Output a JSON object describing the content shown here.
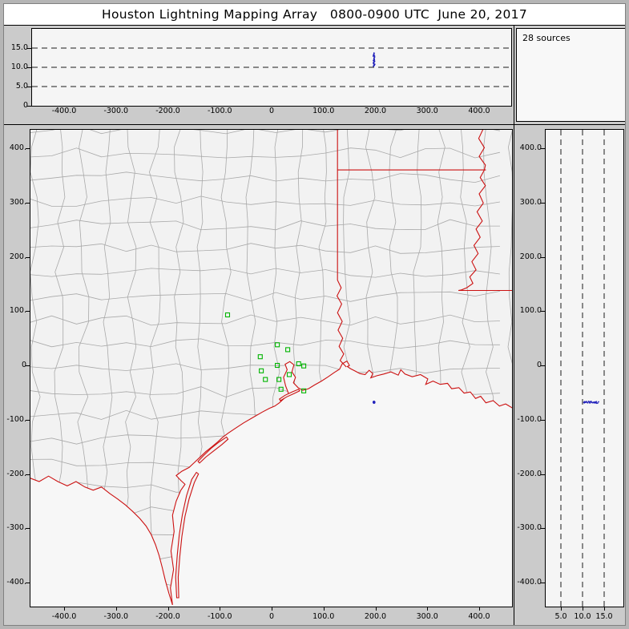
{
  "window": {
    "title": "Houston Lightning Mapping Array   0800-0900 UTC  June 20, 2017"
  },
  "source_panel": {
    "label": "28 sources"
  },
  "colors": {
    "state_border_red": "#cc1111",
    "county_line_gray": "#a9a9a9",
    "station_green": "#00b400",
    "source_blue": "#2222bb",
    "window_gray": "#cbcbcb",
    "frame_gray": "#b5b5b5",
    "panel_bg": "#f5f5f5",
    "sea_bg": "#f7f7f7",
    "land_fill": "#f2f2f2",
    "title_bg": "#ffffff"
  },
  "axes": {
    "ew_values_km": [
      -400,
      -300,
      -200,
      -100,
      0,
      100,
      200,
      300,
      400
    ],
    "ew_labels": [
      "-400.0",
      "-300.0",
      "-200.0",
      "-100.0",
      "0",
      "100.0",
      "200.0",
      "300.0",
      "400.0"
    ],
    "ns_values_km": [
      400,
      300,
      200,
      100,
      0,
      -100,
      -200,
      -300,
      -400
    ],
    "ns_labels_main": [
      "400.",
      "300.",
      "200.",
      "100.",
      "0",
      "-100.",
      "-200.",
      "-300.",
      "-400."
    ],
    "ns_labels_right": [
      "400.0",
      "300.0",
      "200.0",
      "100.0",
      "0",
      "-100.0",
      "-200.0",
      "-300.0",
      "-400.0"
    ],
    "alt_values_km": [
      15,
      10,
      5,
      0
    ],
    "alt_labels": [
      "15.0",
      "10.0",
      "5.0",
      "0"
    ],
    "alt_grid_km": [
      5,
      10,
      15
    ],
    "alt_right_values_km": [
      5,
      10,
      15
    ],
    "alt_right_labels": [
      "5.0",
      "10.0",
      "15.0"
    ]
  },
  "chart_data": {
    "type": "scatter",
    "title": "Houston Lightning Mapping Array 0800-0900 UTC June 20, 2017",
    "description": "XLMA-style lightning mapping array display: plan-view map of the Texas/Louisiana Gulf coast with altitude projection panels and source-count panel",
    "source_count": 28,
    "panels": [
      {
        "name": "altitude-vs-east-west",
        "x": "east-west distance (km)",
        "y": "altitude (km)",
        "x_range": [
          -462,
          462
        ],
        "y_range": [
          0,
          20
        ],
        "dashed_gridlines_km": [
          5,
          10,
          15
        ]
      },
      {
        "name": "source-count-histogram",
        "label": "28 sources"
      },
      {
        "name": "plan-view",
        "x": "east-west distance (km)",
        "y": "north-south distance (km)",
        "x_range": [
          -465,
          462
        ],
        "y_range": [
          -440,
          435
        ]
      },
      {
        "name": "altitude-vs-north-south",
        "x": "altitude (km)",
        "y": "north-south distance (km)",
        "x_range": [
          0,
          18
        ],
        "dashed_gridlines_km": [
          5,
          10,
          15
        ]
      }
    ],
    "station_marker": "green-open-square",
    "stations_km": [
      [
        -85,
        93
      ],
      [
        11,
        38
      ],
      [
        31,
        29
      ],
      [
        -22,
        16
      ],
      [
        52,
        3
      ],
      [
        62,
        -1
      ],
      [
        -20,
        -10
      ],
      [
        11,
        0
      ],
      [
        -12,
        -26
      ],
      [
        14,
        -26
      ],
      [
        34,
        -17
      ],
      [
        18,
        -44
      ],
      [
        62,
        -47
      ]
    ],
    "source_points_km": [
      [
        196.2,
        -67.1,
        11.8
      ],
      [
        197.5,
        -68.3,
        12.1
      ],
      [
        196.8,
        -66.5,
        10.9
      ],
      [
        198.1,
        -67.8,
        12.6
      ],
      [
        197.0,
        -69.0,
        11.2
      ],
      [
        196.5,
        -68.8,
        13.1
      ],
      [
        197.9,
        -66.9,
        10.5
      ],
      [
        198.4,
        -68.1,
        11.6
      ],
      [
        196.0,
        -67.5,
        12.9
      ],
      [
        197.3,
        -69.4,
        13.5
      ],
      [
        198.8,
        -67.3,
        10.8
      ],
      [
        196.7,
        -66.2,
        11.4
      ],
      [
        197.6,
        -68.6,
        12.3
      ],
      [
        198.2,
        -69.2,
        13.0
      ],
      [
        196.3,
        -68.0,
        10.3
      ],
      [
        197.1,
        -66.7,
        11.9
      ],
      [
        198.6,
        -68.9,
        12.7
      ],
      [
        196.9,
        -69.6,
        13.3
      ],
      [
        197.8,
        -67.6,
        10.6
      ],
      [
        196.1,
        -68.4,
        11.1
      ],
      [
        198.0,
        -66.4,
        12.0
      ],
      [
        197.4,
        -67.2,
        13.7
      ],
      [
        196.6,
        -69.1,
        10.4
      ],
      [
        198.3,
        -67.0,
        11.5
      ],
      [
        197.2,
        -68.7,
        12.4
      ],
      [
        196.4,
        -66.8,
        13.2
      ],
      [
        198.5,
        -68.2,
        10.7
      ],
      [
        197.7,
        -69.3,
        11.7
      ]
    ],
    "map_features": [
      "texas-county-outlines",
      "louisiana-parish-outlines",
      "state-borders-red",
      "gulf-coastline",
      "barrier-islands",
      "rio-grande",
      "sabine-river-border",
      "mississippi-river-border"
    ]
  }
}
